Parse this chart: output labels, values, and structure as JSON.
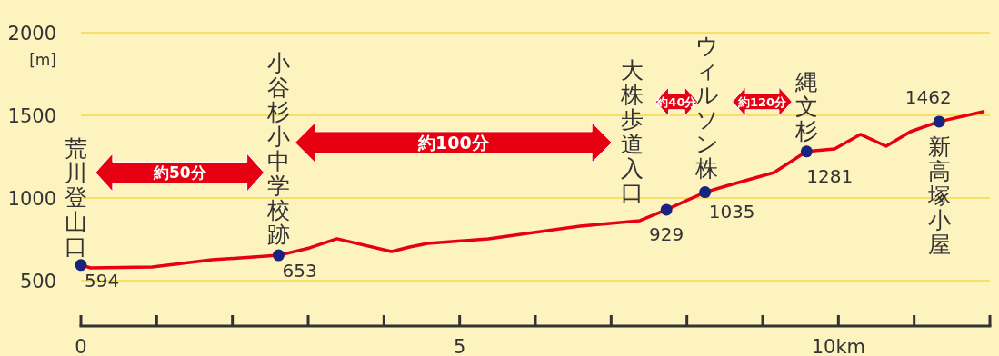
{
  "chart_data": {
    "type": "line",
    "ylabel": "[m]",
    "xlim": [
      0,
      12
    ],
    "ylim": [
      225,
      2000
    ],
    "xticks": [
      0,
      {
        "value": 1,
        "label": null
      },
      {
        "value": 2,
        "label": null
      },
      {
        "value": 3,
        "label": null
      },
      {
        "value": 4,
        "label": null
      },
      5,
      {
        "value": 6,
        "label": null
      },
      {
        "value": 7,
        "label": null
      },
      {
        "value": 8,
        "label": null
      },
      {
        "value": 9,
        "label": null
      },
      {
        "value": 10,
        "label": "10km"
      },
      {
        "value": 11,
        "label": null
      },
      {
        "value": 12,
        "label": null
      }
    ],
    "yticks": [
      500,
      1000,
      1500,
      2000
    ],
    "grid": "y",
    "series": [
      {
        "color": "#e60012",
        "marker": "none",
        "x": [
          0,
          0.13,
          0.94,
          1.73,
          2.61,
          3.02,
          3.38,
          4.1,
          4.34,
          4.58,
          5.38,
          6.59,
          7.38,
          7.73,
          8.24,
          8.51,
          9.15,
          9.58,
          9.95,
          10.29,
          10.63,
          10.95,
          11.33,
          11.91
        ],
        "values": [
          594,
          577,
          582,
          626,
          653,
          698,
          753,
          676,
          703,
          725,
          753,
          830,
          863,
          929,
          1035,
          1071,
          1154,
          1281,
          1297,
          1385,
          1313,
          1401,
          1462,
          1522
        ]
      },
      {
        "type": "scatter",
        "color": "#1a237e",
        "marker": "circle",
        "x": [
          0,
          2.61,
          7.73,
          8.24,
          9.58,
          11.33
        ],
        "values": [
          594,
          653,
          929,
          1035,
          1281,
          1462
        ],
        "value_labels": [
          "594",
          "653",
          "929",
          "1035",
          "1281",
          "1462"
        ]
      }
    ],
    "annotations": [
      {
        "text": "荒川登山口",
        "x": 0,
        "y": 594
      },
      {
        "text": "小谷杉小中学校跡",
        "x": 2.61,
        "y": 653
      },
      {
        "text": "大株歩道入口",
        "x": 7.73,
        "y": 929
      },
      {
        "text": "ウィルソン株",
        "x": 8.24,
        "y": 1035
      },
      {
        "text": "縄文杉",
        "x": 9.58,
        "y": 1281
      },
      {
        "text": "新高塚小屋",
        "x": 11.33,
        "y": 1462
      },
      "約50分",
      "約100分",
      "約40分",
      "約120分"
    ]
  }
}
